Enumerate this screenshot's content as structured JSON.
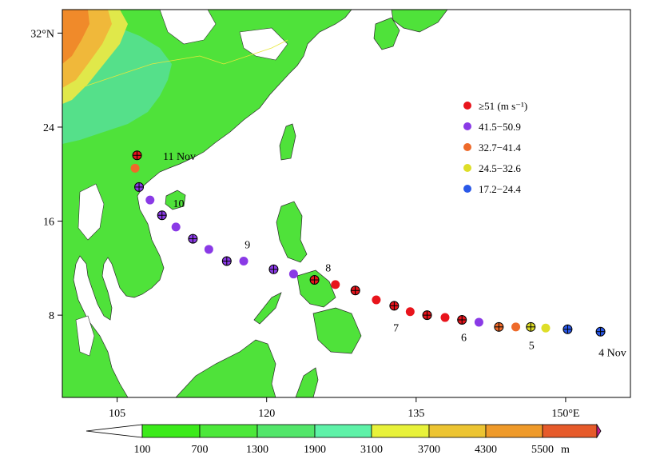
{
  "map": {
    "lat_ticks": [
      {
        "lat": 32,
        "label": "32°N"
      },
      {
        "lat": 24,
        "label": "24"
      },
      {
        "lat": 16,
        "label": "16"
      },
      {
        "lat": 8,
        "label": "8"
      }
    ],
    "lon_ticks": [
      {
        "lon": 105,
        "label": "105"
      },
      {
        "lon": 120,
        "label": "120"
      },
      {
        "lon": 135,
        "label": "135"
      },
      {
        "lon": 150,
        "label": "150°E"
      }
    ],
    "lon_range": [
      99.5,
      156.5
    ],
    "lat_range": [
      1.0,
      34.0
    ]
  },
  "legend": {
    "items": [
      {
        "label": "≥51 (m s⁻¹)",
        "color": "#e8141c"
      },
      {
        "label": "41.5−50.9",
        "color": "#8a3ae6"
      },
      {
        "label": "32.7−41.4",
        "color": "#ee6a2a"
      },
      {
        "label": "24.5−32.6",
        "color": "#dede28"
      },
      {
        "label": "17.2−24.4",
        "color": "#2a58e8"
      }
    ]
  },
  "track": {
    "points": [
      {
        "lon": 153.5,
        "lat": 6.6,
        "cat": 4,
        "cross": true
      },
      {
        "lon": 150.2,
        "lat": 6.8,
        "cat": 4,
        "cross": true
      },
      {
        "lon": 148.0,
        "lat": 6.9,
        "cat": 3,
        "cross": false
      },
      {
        "lon": 146.5,
        "lat": 7.0,
        "cat": 3,
        "cross": true
      },
      {
        "lon": 145.0,
        "lat": 7.0,
        "cat": 2,
        "cross": false
      },
      {
        "lon": 143.3,
        "lat": 7.0,
        "cat": 2,
        "cross": true
      },
      {
        "lon": 141.3,
        "lat": 7.4,
        "cat": 1,
        "cross": false
      },
      {
        "lon": 139.6,
        "lat": 7.6,
        "cat": 0,
        "cross": true
      },
      {
        "lon": 137.9,
        "lat": 7.8,
        "cat": 0,
        "cross": false
      },
      {
        "lon": 136.1,
        "lat": 8.0,
        "cat": 0,
        "cross": true
      },
      {
        "lon": 134.4,
        "lat": 8.3,
        "cat": 0,
        "cross": false
      },
      {
        "lon": 132.8,
        "lat": 8.8,
        "cat": 0,
        "cross": true
      },
      {
        "lon": 131.0,
        "lat": 9.3,
        "cat": 0,
        "cross": false
      },
      {
        "lon": 128.9,
        "lat": 10.1,
        "cat": 0,
        "cross": true
      },
      {
        "lon": 126.9,
        "lat": 10.6,
        "cat": 0,
        "cross": false
      },
      {
        "lon": 124.8,
        "lat": 11.0,
        "cat": 0,
        "cross": true
      },
      {
        "lon": 122.7,
        "lat": 11.5,
        "cat": 1,
        "cross": false
      },
      {
        "lon": 120.7,
        "lat": 11.9,
        "cat": 1,
        "cross": true
      },
      {
        "lon": 117.7,
        "lat": 12.6,
        "cat": 1,
        "cross": false
      },
      {
        "lon": 116.0,
        "lat": 12.6,
        "cat": 1,
        "cross": true
      },
      {
        "lon": 114.2,
        "lat": 13.6,
        "cat": 1,
        "cross": false
      },
      {
        "lon": 112.6,
        "lat": 14.5,
        "cat": 1,
        "cross": true
      },
      {
        "lon": 110.9,
        "lat": 15.5,
        "cat": 1,
        "cross": false
      },
      {
        "lon": 109.5,
        "lat": 16.5,
        "cat": 1,
        "cross": true
      },
      {
        "lon": 108.3,
        "lat": 17.8,
        "cat": 1,
        "cross": false
      },
      {
        "lon": 107.2,
        "lat": 18.9,
        "cat": 1,
        "cross": true
      },
      {
        "lon": 106.8,
        "lat": 20.5,
        "cat": 2,
        "cross": false
      },
      {
        "lon": 107.0,
        "lat": 21.6,
        "cat": 0,
        "cross": true
      }
    ],
    "day_labels": [
      {
        "text": "4  Nov",
        "lon": 153.3,
        "lat": 4.5
      },
      {
        "text": "5",
        "lon": 146.3,
        "lat": 5.1
      },
      {
        "text": "6",
        "lon": 139.5,
        "lat": 5.8
      },
      {
        "text": "7",
        "lon": 132.7,
        "lat": 6.6
      },
      {
        "text": "8",
        "lon": 125.9,
        "lat": 11.7
      },
      {
        "text": "9",
        "lon": 117.8,
        "lat": 13.7
      },
      {
        "text": "10",
        "lon": 110.6,
        "lat": 17.2
      },
      {
        "text": "11  Nov",
        "lon": 109.6,
        "lat": 21.2
      }
    ]
  },
  "colorbar": {
    "colors": [
      "#ffffff",
      "#3bea1a",
      "#4ce83a",
      "#52e66a",
      "#5ef2a8",
      "#e8f23a",
      "#ecc432",
      "#ef9a2a",
      "#e65a2a",
      "#c81e8c"
    ],
    "labels": [
      "100",
      "700",
      "1300",
      "1900",
      "3100",
      "3700",
      "4300",
      "5500"
    ],
    "unit": "m"
  }
}
